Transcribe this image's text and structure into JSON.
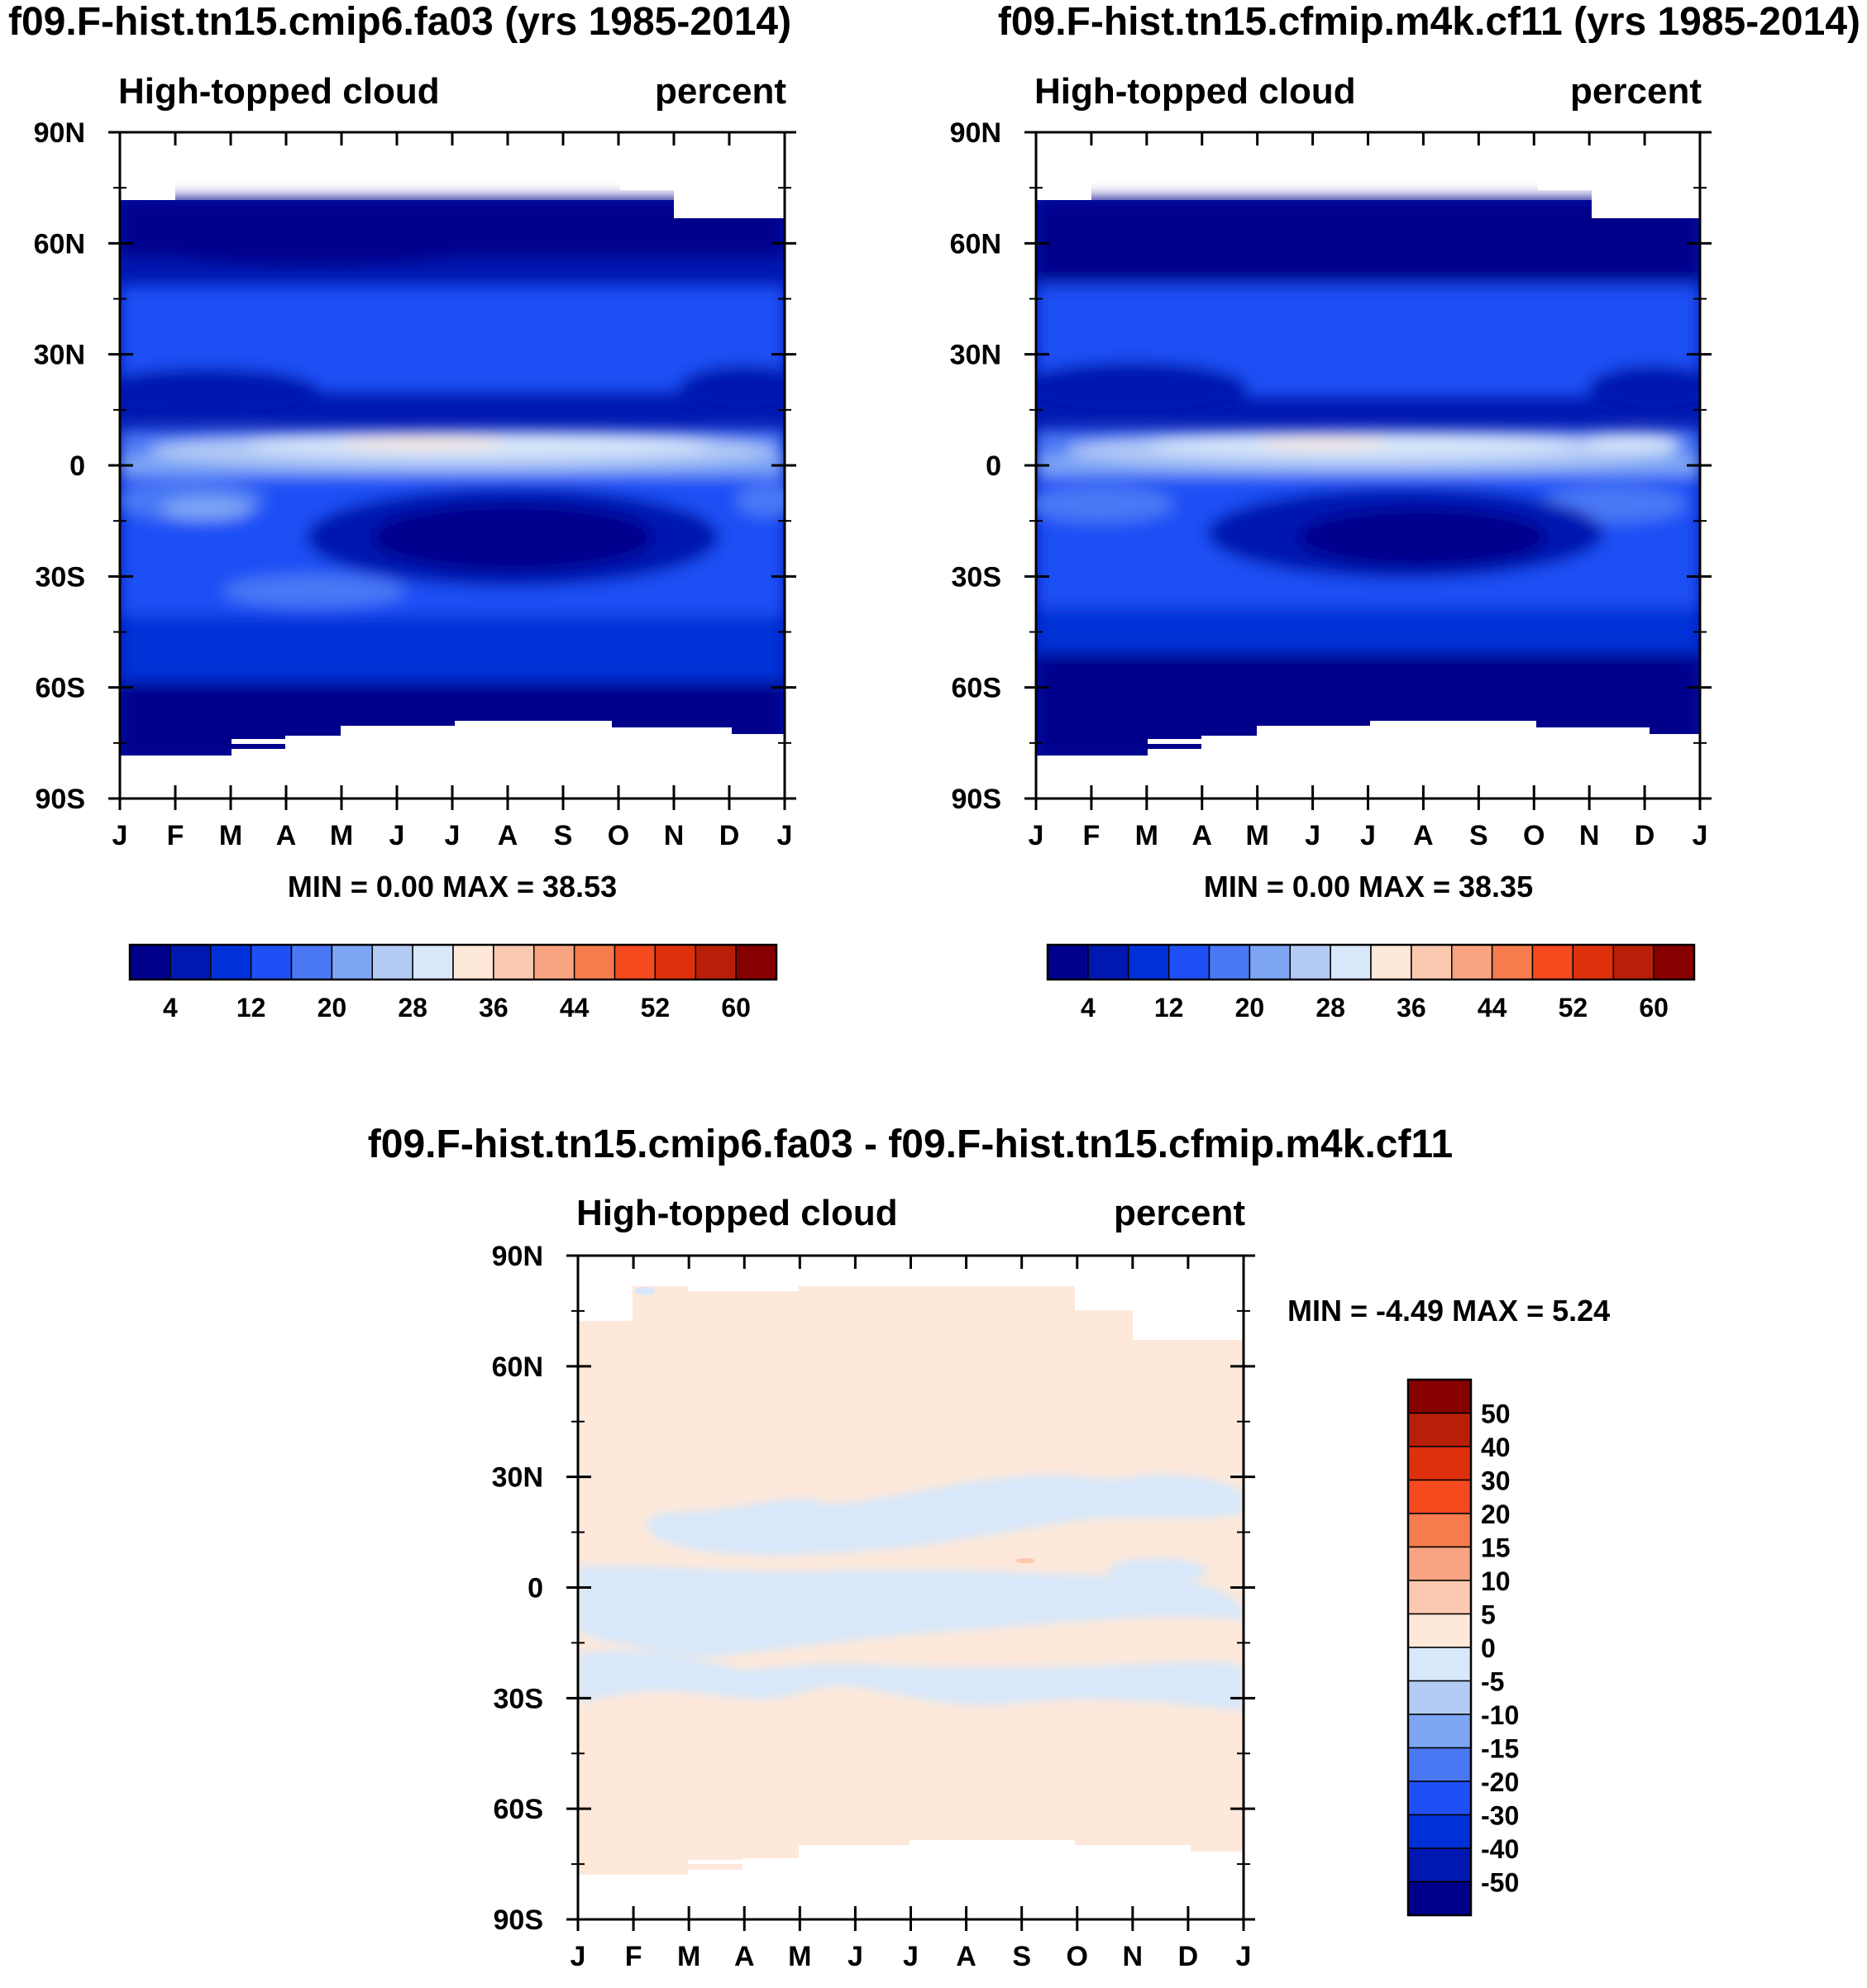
{
  "chart_data": {
    "type": "heatmap",
    "panels": [
      {
        "id": "p1",
        "title": "f09.F-hist.tn15.cmip6.fa03 (yrs 1985-2014)",
        "left_label": "High-topped cloud",
        "right_label": "percent",
        "x_ticks": [
          "J",
          "F",
          "M",
          "A",
          "M",
          "J",
          "J",
          "A",
          "S",
          "O",
          "N",
          "D",
          "J"
        ],
        "y_ticks": [
          "90N",
          "60N",
          "30N",
          "0",
          "30S",
          "60S",
          "90S"
        ],
        "ylim": [
          -90,
          90
        ],
        "min_max": "MIN =   0.00 MAX =  38.53",
        "colorbar_ticks": [
          "4",
          "12",
          "20",
          "28",
          "36",
          "44",
          "52",
          "60"
        ]
      },
      {
        "id": "p2",
        "title": "f09.F-hist.tn15.cfmip.m4k.cf11 (yrs 1985-2014)",
        "left_label": "High-topped cloud",
        "right_label": "percent",
        "x_ticks": [
          "J",
          "F",
          "M",
          "A",
          "M",
          "J",
          "J",
          "A",
          "S",
          "O",
          "N",
          "D",
          "J"
        ],
        "y_ticks": [
          "90N",
          "60N",
          "30N",
          "0",
          "30S",
          "60S",
          "90S"
        ],
        "ylim": [
          -90,
          90
        ],
        "min_max": "MIN =   0.00 MAX =  38.35",
        "colorbar_ticks": [
          "4",
          "12",
          "20",
          "28",
          "36",
          "44",
          "52",
          "60"
        ]
      },
      {
        "id": "p3",
        "title": "f09.F-hist.tn15.cmip6.fa03 - f09.F-hist.tn15.cfmip.m4k.cf11",
        "left_label": "High-topped cloud",
        "right_label": "percent",
        "x_ticks": [
          "J",
          "F",
          "M",
          "A",
          "M",
          "J",
          "J",
          "A",
          "S",
          "O",
          "N",
          "D",
          "J"
        ],
        "y_ticks": [
          "90N",
          "60N",
          "30N",
          "0",
          "30S",
          "60S",
          "90S"
        ],
        "ylim": [
          -90,
          90
        ],
        "min_max": "MIN =  -4.49 MAX =   5.24",
        "colorbar_ticks": [
          "50",
          "40",
          "30",
          "20",
          "15",
          "10",
          "5",
          "0",
          "-5",
          "-10",
          "-15",
          "-20",
          "-30",
          "-40",
          "-50"
        ]
      }
    ],
    "abs_colors": [
      "#00008b",
      "#0018b0",
      "#0030d8",
      "#1e50f5",
      "#4a78f5",
      "#7ea6f5",
      "#b4cbf5",
      "#d8e8fa",
      "#fde8da",
      "#fbc9b0",
      "#f8a482",
      "#f67c4e",
      "#f44a1e",
      "#df300c",
      "#b81f08",
      "#870000"
    ],
    "diff_colors": [
      "#870000",
      "#b81f08",
      "#df300c",
      "#f44a1e",
      "#f67c4e",
      "#f8a482",
      "#fbc9b0",
      "#fde8da",
      "#d8e8fa",
      "#b4cbf5",
      "#7ea6f5",
      "#4a78f5",
      "#1e50f5",
      "#0030d8",
      "#0018b0",
      "#00008b"
    ]
  }
}
